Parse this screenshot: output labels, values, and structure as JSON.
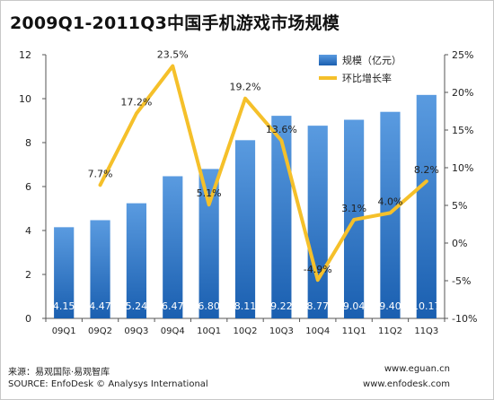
{
  "chart_data": {
    "type": "bar",
    "title": "2009Q1-2011Q3中国手机游戏市场规模",
    "categories": [
      "09Q1",
      "09Q2",
      "09Q3",
      "09Q4",
      "10Q1",
      "10Q2",
      "10Q3",
      "10Q4",
      "11Q1",
      "11Q2",
      "11Q3"
    ],
    "series": [
      {
        "name": "规模（亿元）",
        "type": "bar",
        "axis": "left",
        "values": [
          4.15,
          4.47,
          5.24,
          6.47,
          6.8,
          8.11,
          9.22,
          8.77,
          9.04,
          9.4,
          10.17
        ],
        "labels": [
          "4.15",
          "4.47",
          "5.24",
          "6.47",
          "6.80",
          "8.11",
          "9.22",
          "8.77",
          "9.04",
          "9.40",
          "10.17"
        ]
      },
      {
        "name": "环比增长率",
        "type": "line",
        "axis": "right",
        "values": [
          null,
          7.7,
          17.2,
          23.5,
          5.1,
          19.2,
          13.6,
          -4.9,
          3.1,
          4.0,
          8.2
        ],
        "labels": [
          "",
          "7.7%",
          "17.2%",
          "23.5%",
          "5.1%",
          "19.2%",
          "13.6%",
          "-4.9%",
          "3.1%",
          "4.0%",
          "8.2%"
        ]
      }
    ],
    "left_axis": {
      "ylim": [
        0,
        12
      ],
      "ticks": [
        "0",
        "2",
        "4",
        "6",
        "8",
        "10",
        "12"
      ]
    },
    "right_axis": {
      "ylim": [
        -10,
        25
      ],
      "ticks": [
        "-10%",
        "-5%",
        "0%",
        "5%",
        "10%",
        "15%",
        "20%",
        "25%"
      ]
    },
    "legend_position": "top-right",
    "grid": false,
    "colors": {
      "bar_top": "#5a9be0",
      "bar_bottom": "#1a5fb0",
      "line": "#f5c02a"
    }
  },
  "footer": {
    "source_cn": "来源：易观国际·易观智库",
    "source_en": "SOURCE: EnfoDesk © Analysys International",
    "site1": "www.eguan.cn",
    "site2": "www.enfodesk.com"
  }
}
